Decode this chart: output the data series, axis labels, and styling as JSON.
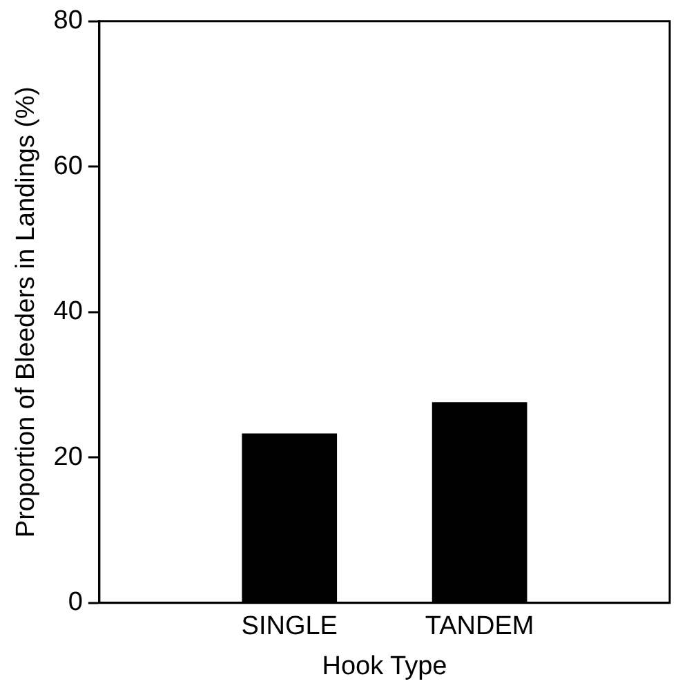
{
  "chart_data": {
    "type": "bar",
    "xlabel": "Hook Type",
    "ylabel": "Proportion of Bleeders in Landings (%)",
    "categories": [
      "SINGLE",
      "TANDEM"
    ],
    "values": [
      23.3,
      27.6
    ],
    "color": "#000000",
    "ylim": [
      0,
      80
    ],
    "yticks": [
      0,
      20,
      40,
      60,
      80
    ],
    "grid": false,
    "legend": false
  }
}
